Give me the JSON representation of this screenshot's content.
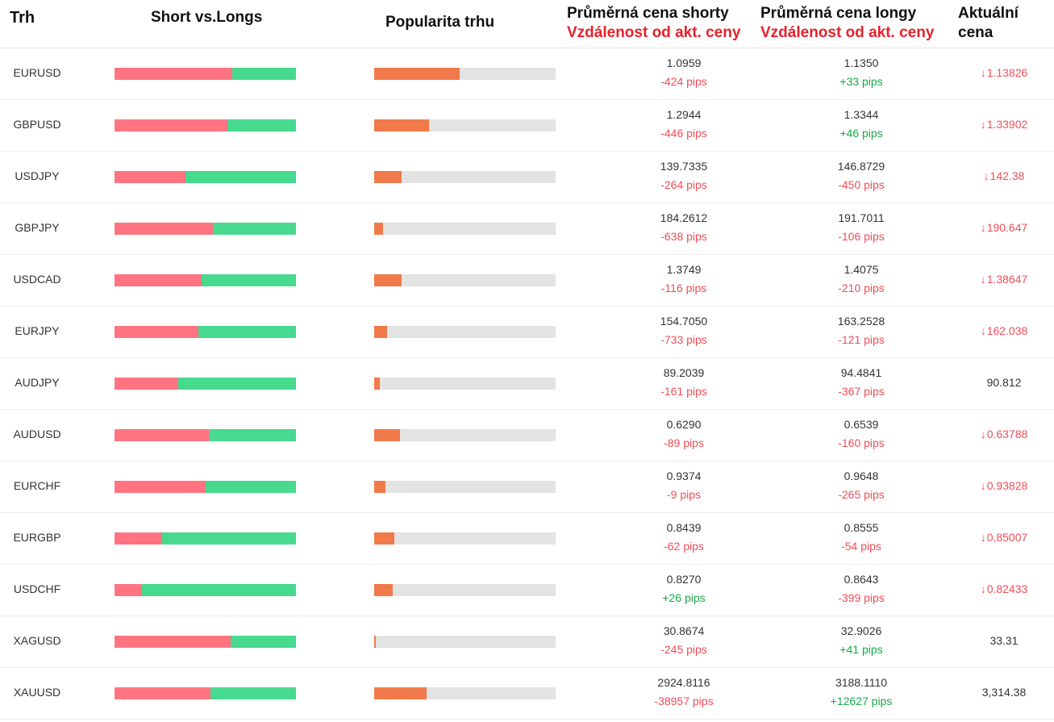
{
  "header": {
    "trh": "Trh",
    "short_vs_longs": "Short vs.Longs",
    "popularita": "Popularita trhu",
    "avg_short": "Průměrná cena shorty",
    "avg_short_sub": "Vzdálenost od akt. ceny",
    "avg_long": "Průměrná cena longy",
    "avg_long_sub": "Vzdálenost od akt. ceny",
    "current_1": "Aktuální",
    "current_2": "cena"
  },
  "colors": {
    "short": "#ff7480",
    "long": "#47d98e",
    "popularity": "#f07a4a",
    "negative": "#ef4e58",
    "positive": "#1aa84a"
  },
  "rows": [
    {
      "symbol": "EURUSD",
      "short_pct": 65,
      "popularity_pct": 47,
      "short_price": "1.0959",
      "short_pips": "-424 pips",
      "short_pips_sign": "neg",
      "long_price": "1.1350",
      "long_pips": "+33 pips",
      "long_pips_sign": "pos",
      "current": "1.13826",
      "current_dir": "down"
    },
    {
      "symbol": "GBPUSD",
      "short_pct": 62,
      "popularity_pct": 30,
      "short_price": "1.2944",
      "short_pips": "-446 pips",
      "short_pips_sign": "neg",
      "long_price": "1.3344",
      "long_pips": "+46 pips",
      "long_pips_sign": "pos",
      "current": "1.33902",
      "current_dir": "down"
    },
    {
      "symbol": "USDJPY",
      "short_pct": 39,
      "popularity_pct": 15,
      "short_price": "139.7335",
      "short_pips": "-264 pips",
      "short_pips_sign": "neg",
      "long_price": "146.8729",
      "long_pips": "-450 pips",
      "long_pips_sign": "neg",
      "current": "142.38",
      "current_dir": "down"
    },
    {
      "symbol": "GBPJPY",
      "short_pct": 54,
      "popularity_pct": 5,
      "short_price": "184.2612",
      "short_pips": "-638 pips",
      "short_pips_sign": "neg",
      "long_price": "191.7011",
      "long_pips": "-106 pips",
      "long_pips_sign": "neg",
      "current": "190.647",
      "current_dir": "down"
    },
    {
      "symbol": "USDCAD",
      "short_pct": 48,
      "popularity_pct": 15,
      "short_price": "1.3749",
      "short_pips": "-116 pips",
      "short_pips_sign": "neg",
      "long_price": "1.4075",
      "long_pips": "-210 pips",
      "long_pips_sign": "neg",
      "current": "1.38647",
      "current_dir": "down"
    },
    {
      "symbol": "EURJPY",
      "short_pct": 46,
      "popularity_pct": 7,
      "short_price": "154.7050",
      "short_pips": "-733 pips",
      "short_pips_sign": "neg",
      "long_price": "163.2528",
      "long_pips": "-121 pips",
      "long_pips_sign": "neg",
      "current": "162.038",
      "current_dir": "down"
    },
    {
      "symbol": "AUDJPY",
      "short_pct": 35,
      "popularity_pct": 3,
      "short_price": "89.2039",
      "short_pips": "-161 pips",
      "short_pips_sign": "neg",
      "long_price": "94.4841",
      "long_pips": "-367 pips",
      "long_pips_sign": "neg",
      "current": "90.812",
      "current_dir": "flat"
    },
    {
      "symbol": "AUDUSD",
      "short_pct": 52,
      "popularity_pct": 14,
      "short_price": "0.6290",
      "short_pips": "-89 pips",
      "short_pips_sign": "neg",
      "long_price": "0.6539",
      "long_pips": "-160 pips",
      "long_pips_sign": "neg",
      "current": "0.63788",
      "current_dir": "down"
    },
    {
      "symbol": "EURCHF",
      "short_pct": 50,
      "popularity_pct": 6,
      "short_price": "0.9374",
      "short_pips": "-9 pips",
      "short_pips_sign": "neg",
      "long_price": "0.9648",
      "long_pips": "-265 pips",
      "long_pips_sign": "neg",
      "current": "0.93828",
      "current_dir": "down"
    },
    {
      "symbol": "EURGBP",
      "short_pct": 26,
      "popularity_pct": 11,
      "short_price": "0.8439",
      "short_pips": "-62 pips",
      "short_pips_sign": "neg",
      "long_price": "0.8555",
      "long_pips": "-54 pips",
      "long_pips_sign": "neg",
      "current": "0.85007",
      "current_dir": "down"
    },
    {
      "symbol": "USDCHF",
      "short_pct": 15,
      "popularity_pct": 10,
      "short_price": "0.8270",
      "short_pips": "+26 pips",
      "short_pips_sign": "pos",
      "long_price": "0.8643",
      "long_pips": "-399 pips",
      "long_pips_sign": "neg",
      "current": "0.82433",
      "current_dir": "down"
    },
    {
      "symbol": "XAGUSD",
      "short_pct": 64,
      "popularity_pct": 1,
      "short_price": "30.8674",
      "short_pips": "-245 pips",
      "short_pips_sign": "neg",
      "long_price": "32.9026",
      "long_pips": "+41 pips",
      "long_pips_sign": "pos",
      "current": "33.31",
      "current_dir": "flat"
    },
    {
      "symbol": "XAUUSD",
      "short_pct": 53,
      "popularity_pct": 29,
      "short_price": "2924.8116",
      "short_pips": "-38957 pips",
      "short_pips_sign": "neg",
      "long_price": "3188.1110",
      "long_pips": "+12627 pips",
      "long_pips_sign": "pos",
      "current": "3,314.38",
      "current_dir": "flat"
    }
  ]
}
